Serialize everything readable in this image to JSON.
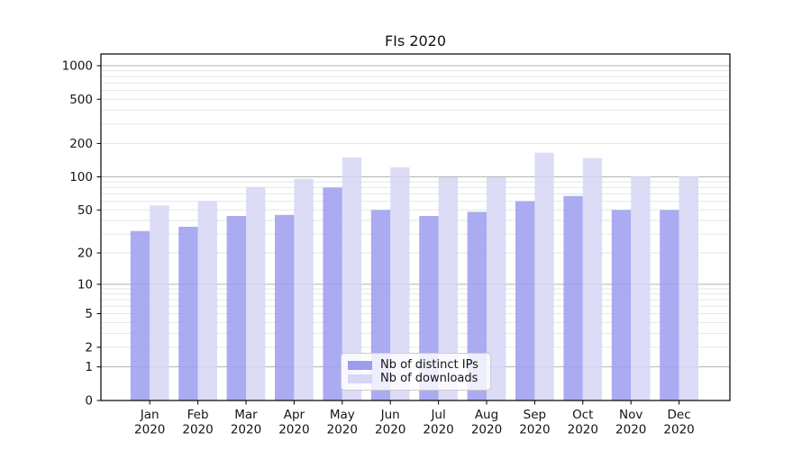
{
  "title": "FIs 2020",
  "chart_data": {
    "type": "bar",
    "title": "FIs 2020",
    "categories": [
      "Jan",
      "Feb",
      "Mar",
      "Apr",
      "May",
      "Jun",
      "Jul",
      "Aug",
      "Sep",
      "Oct",
      "Nov",
      "Dec"
    ],
    "category_year": "2020",
    "series": [
      {
        "name": "Nb of distinct IPs",
        "color": "#9c9cee",
        "values": [
          32,
          35,
          44,
          45,
          80,
          50,
          44,
          48,
          60,
          67,
          50,
          50
        ]
      },
      {
        "name": "Nb of downloads",
        "color": "#d6d6f6",
        "values": [
          55,
          60,
          81,
          96,
          150,
          122,
          99,
          99,
          165,
          148,
          101,
          101
        ]
      }
    ],
    "xlabel": "",
    "ylabel": "",
    "yscale": "log1p",
    "ylim": [
      0,
      1273
    ],
    "y_ticks": [
      0,
      1,
      2,
      5,
      10,
      20,
      50,
      100,
      200,
      500,
      1000
    ],
    "y_major_gridline_values": [
      1,
      10,
      100,
      1000
    ],
    "grid": true,
    "legend_position": "lower center inside"
  },
  "colors": {
    "bar_ips": "#9c9cee",
    "bar_downloads": "#d6d6f6",
    "gridline_major": "#b3b3b3",
    "gridline_minor": "#e6e6e6",
    "spine": "#000000",
    "text": "#141414",
    "legend_border": "#cccccc"
  }
}
